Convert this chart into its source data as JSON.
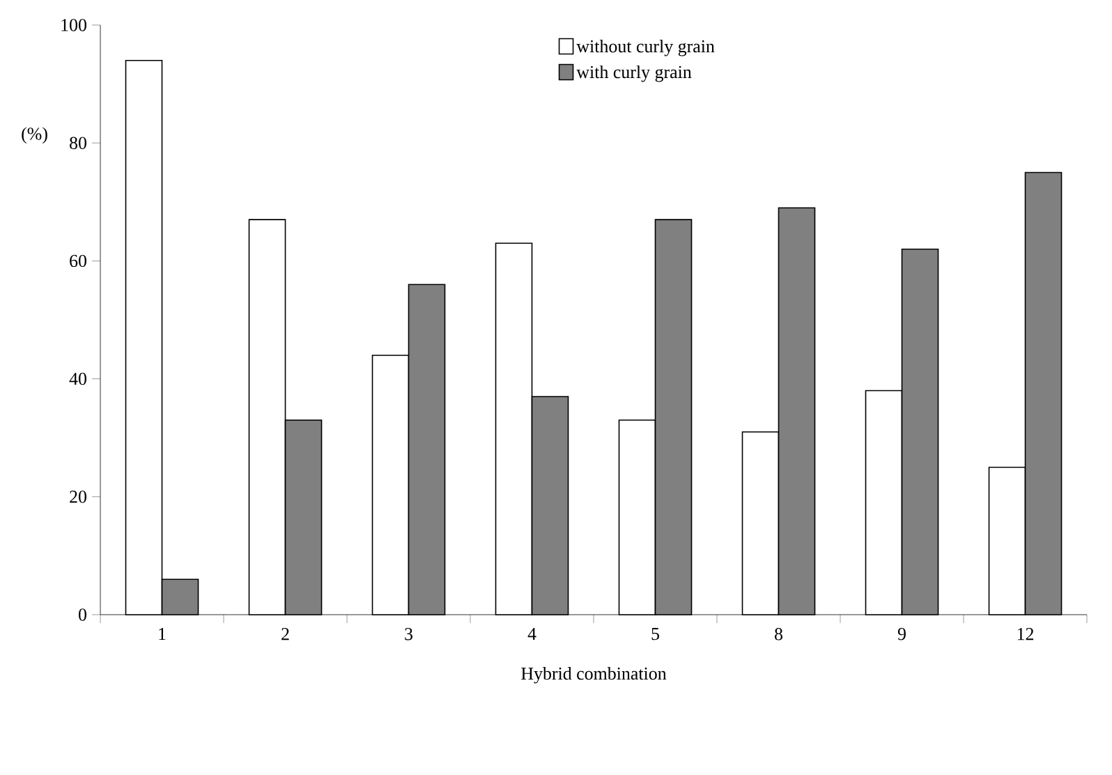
{
  "chart_data": {
    "type": "bar",
    "xlabel": "Hybrid combination",
    "ylabel": "(%)",
    "categories": [
      "1",
      "2",
      "3",
      "4",
      "5",
      "8",
      "9",
      "12"
    ],
    "series": [
      {
        "name": "without curly grain",
        "color": "#ffffff",
        "values": [
          94,
          67,
          44,
          63,
          33,
          31,
          38,
          25
        ]
      },
      {
        "name": "with curly grain",
        "color": "#808080",
        "values": [
          6,
          33,
          56,
          37,
          67,
          69,
          62,
          75
        ]
      }
    ],
    "ylim": [
      0,
      100
    ],
    "yticks": [
      0,
      20,
      40,
      60,
      80,
      100
    ],
    "legend": "top right"
  }
}
